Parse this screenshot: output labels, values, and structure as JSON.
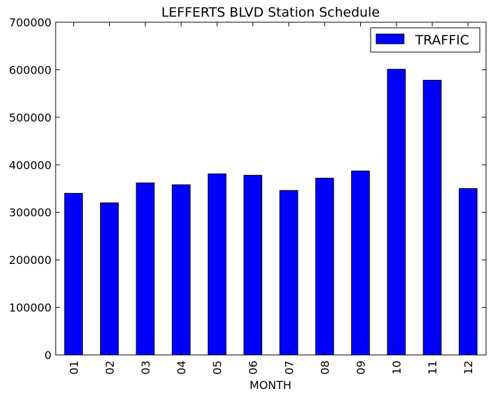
{
  "chart_data": {
    "type": "bar",
    "title": "LEFFERTS BLVD Station Schedule",
    "xlabel": "MONTH",
    "ylabel": "",
    "categories": [
      "01",
      "02",
      "03",
      "04",
      "05",
      "06",
      "07",
      "08",
      "09",
      "10",
      "11",
      "12"
    ],
    "series": [
      {
        "name": "TRAFFIC",
        "color": "#0000ff",
        "values": [
          340000,
          320000,
          362000,
          358000,
          381000,
          378000,
          346000,
          372000,
          387000,
          601000,
          578000,
          350000
        ]
      }
    ],
    "ylim": [
      0,
      700000
    ],
    "yticks": [
      0,
      100000,
      200000,
      300000,
      400000,
      500000,
      600000,
      700000
    ],
    "ytick_labels": [
      "0",
      "100000",
      "200000",
      "300000",
      "400000",
      "500000",
      "600000",
      "700000"
    ],
    "grid": false,
    "legend_position": "top-right"
  }
}
